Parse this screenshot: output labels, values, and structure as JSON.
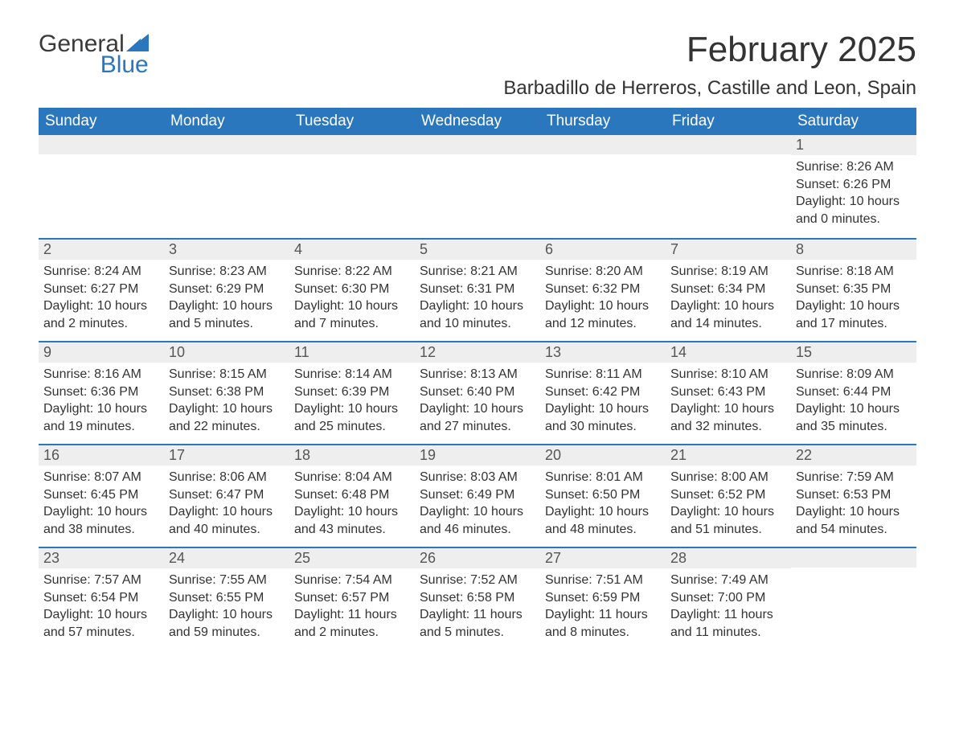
{
  "logo": {
    "general": "General",
    "blue": "Blue"
  },
  "title": "February 2025",
  "location": "Barbadillo de Herreros, Castille and Leon, Spain",
  "colors": {
    "header_bg": "#2b77bd",
    "header_text": "#ffffff",
    "daynum_bg": "#eeeeee",
    "separator": "#2b77bd",
    "body_text": "#333333",
    "logo_general": "#3a3a3a",
    "logo_blue": "#2b77bd"
  },
  "weekdays": [
    "Sunday",
    "Monday",
    "Tuesday",
    "Wednesday",
    "Thursday",
    "Friday",
    "Saturday"
  ],
  "weeks": [
    [
      null,
      null,
      null,
      null,
      null,
      null,
      {
        "n": "1",
        "sunrise": "Sunrise: 8:26 AM",
        "sunset": "Sunset: 6:26 PM",
        "daylight": "Daylight: 10 hours and 0 minutes."
      }
    ],
    [
      {
        "n": "2",
        "sunrise": "Sunrise: 8:24 AM",
        "sunset": "Sunset: 6:27 PM",
        "daylight": "Daylight: 10 hours and 2 minutes."
      },
      {
        "n": "3",
        "sunrise": "Sunrise: 8:23 AM",
        "sunset": "Sunset: 6:29 PM",
        "daylight": "Daylight: 10 hours and 5 minutes."
      },
      {
        "n": "4",
        "sunrise": "Sunrise: 8:22 AM",
        "sunset": "Sunset: 6:30 PM",
        "daylight": "Daylight: 10 hours and 7 minutes."
      },
      {
        "n": "5",
        "sunrise": "Sunrise: 8:21 AM",
        "sunset": "Sunset: 6:31 PM",
        "daylight": "Daylight: 10 hours and 10 minutes."
      },
      {
        "n": "6",
        "sunrise": "Sunrise: 8:20 AM",
        "sunset": "Sunset: 6:32 PM",
        "daylight": "Daylight: 10 hours and 12 minutes."
      },
      {
        "n": "7",
        "sunrise": "Sunrise: 8:19 AM",
        "sunset": "Sunset: 6:34 PM",
        "daylight": "Daylight: 10 hours and 14 minutes."
      },
      {
        "n": "8",
        "sunrise": "Sunrise: 8:18 AM",
        "sunset": "Sunset: 6:35 PM",
        "daylight": "Daylight: 10 hours and 17 minutes."
      }
    ],
    [
      {
        "n": "9",
        "sunrise": "Sunrise: 8:16 AM",
        "sunset": "Sunset: 6:36 PM",
        "daylight": "Daylight: 10 hours and 19 minutes."
      },
      {
        "n": "10",
        "sunrise": "Sunrise: 8:15 AM",
        "sunset": "Sunset: 6:38 PM",
        "daylight": "Daylight: 10 hours and 22 minutes."
      },
      {
        "n": "11",
        "sunrise": "Sunrise: 8:14 AM",
        "sunset": "Sunset: 6:39 PM",
        "daylight": "Daylight: 10 hours and 25 minutes."
      },
      {
        "n": "12",
        "sunrise": "Sunrise: 8:13 AM",
        "sunset": "Sunset: 6:40 PM",
        "daylight": "Daylight: 10 hours and 27 minutes."
      },
      {
        "n": "13",
        "sunrise": "Sunrise: 8:11 AM",
        "sunset": "Sunset: 6:42 PM",
        "daylight": "Daylight: 10 hours and 30 minutes."
      },
      {
        "n": "14",
        "sunrise": "Sunrise: 8:10 AM",
        "sunset": "Sunset: 6:43 PM",
        "daylight": "Daylight: 10 hours and 32 minutes."
      },
      {
        "n": "15",
        "sunrise": "Sunrise: 8:09 AM",
        "sunset": "Sunset: 6:44 PM",
        "daylight": "Daylight: 10 hours and 35 minutes."
      }
    ],
    [
      {
        "n": "16",
        "sunrise": "Sunrise: 8:07 AM",
        "sunset": "Sunset: 6:45 PM",
        "daylight": "Daylight: 10 hours and 38 minutes."
      },
      {
        "n": "17",
        "sunrise": "Sunrise: 8:06 AM",
        "sunset": "Sunset: 6:47 PM",
        "daylight": "Daylight: 10 hours and 40 minutes."
      },
      {
        "n": "18",
        "sunrise": "Sunrise: 8:04 AM",
        "sunset": "Sunset: 6:48 PM",
        "daylight": "Daylight: 10 hours and 43 minutes."
      },
      {
        "n": "19",
        "sunrise": "Sunrise: 8:03 AM",
        "sunset": "Sunset: 6:49 PM",
        "daylight": "Daylight: 10 hours and 46 minutes."
      },
      {
        "n": "20",
        "sunrise": "Sunrise: 8:01 AM",
        "sunset": "Sunset: 6:50 PM",
        "daylight": "Daylight: 10 hours and 48 minutes."
      },
      {
        "n": "21",
        "sunrise": "Sunrise: 8:00 AM",
        "sunset": "Sunset: 6:52 PM",
        "daylight": "Daylight: 10 hours and 51 minutes."
      },
      {
        "n": "22",
        "sunrise": "Sunrise: 7:59 AM",
        "sunset": "Sunset: 6:53 PM",
        "daylight": "Daylight: 10 hours and 54 minutes."
      }
    ],
    [
      {
        "n": "23",
        "sunrise": "Sunrise: 7:57 AM",
        "sunset": "Sunset: 6:54 PM",
        "daylight": "Daylight: 10 hours and 57 minutes."
      },
      {
        "n": "24",
        "sunrise": "Sunrise: 7:55 AM",
        "sunset": "Sunset: 6:55 PM",
        "daylight": "Daylight: 10 hours and 59 minutes."
      },
      {
        "n": "25",
        "sunrise": "Sunrise: 7:54 AM",
        "sunset": "Sunset: 6:57 PM",
        "daylight": "Daylight: 11 hours and 2 minutes."
      },
      {
        "n": "26",
        "sunrise": "Sunrise: 7:52 AM",
        "sunset": "Sunset: 6:58 PM",
        "daylight": "Daylight: 11 hours and 5 minutes."
      },
      {
        "n": "27",
        "sunrise": "Sunrise: 7:51 AM",
        "sunset": "Sunset: 6:59 PM",
        "daylight": "Daylight: 11 hours and 8 minutes."
      },
      {
        "n": "28",
        "sunrise": "Sunrise: 7:49 AM",
        "sunset": "Sunset: 7:00 PM",
        "daylight": "Daylight: 11 hours and 11 minutes."
      },
      null
    ]
  ]
}
